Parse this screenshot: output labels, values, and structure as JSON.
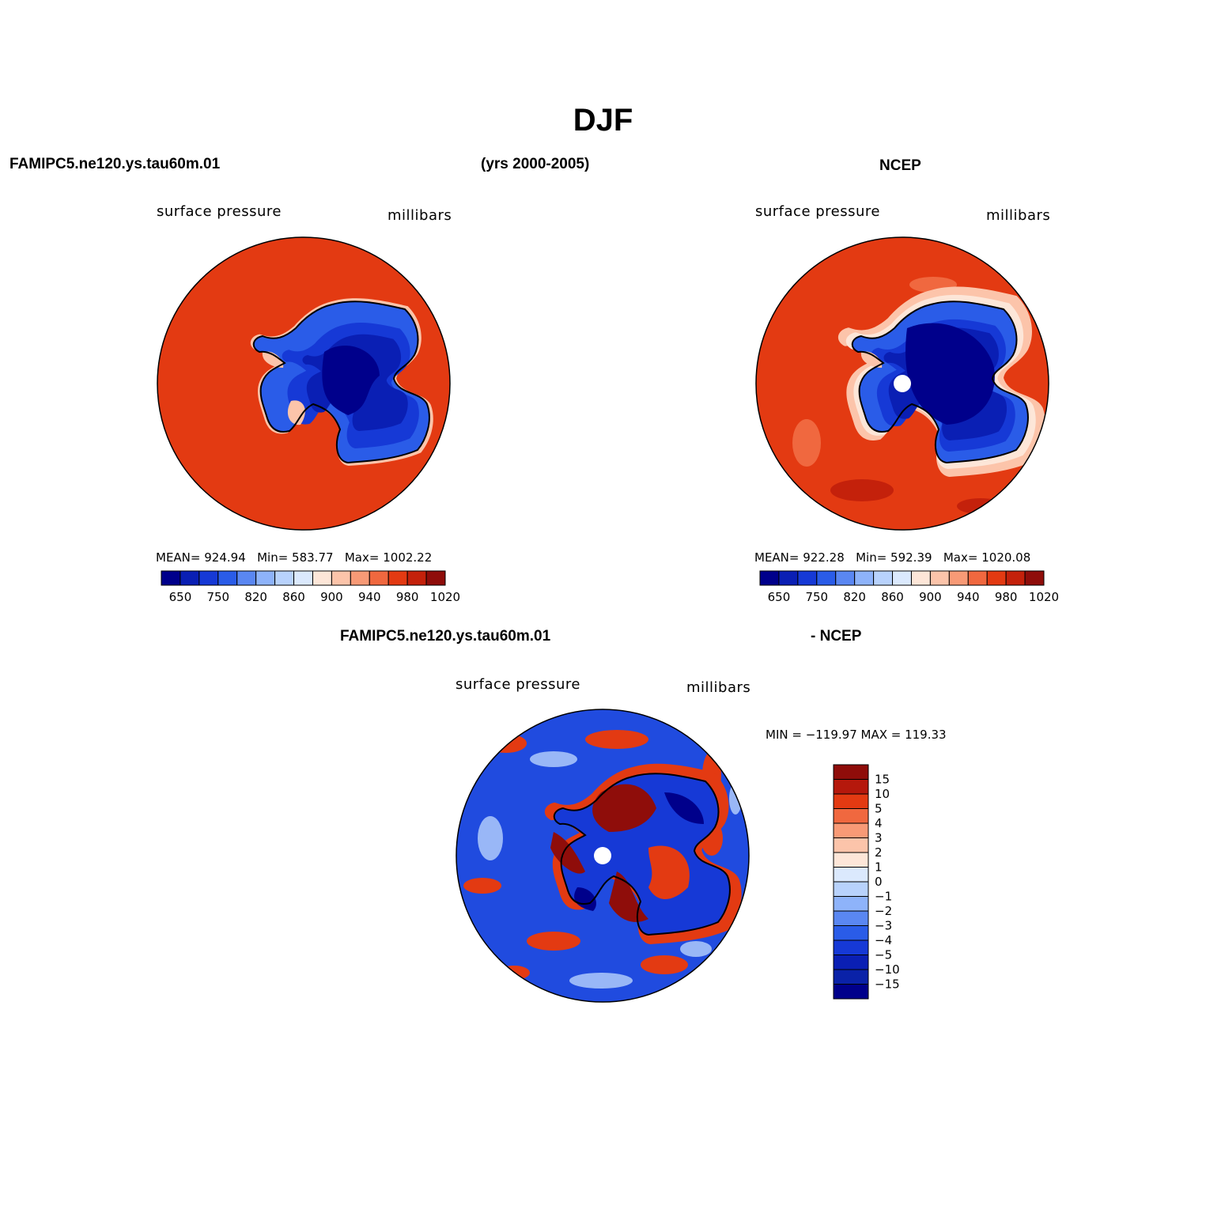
{
  "title": "DJF",
  "top_left": {
    "case_label": "FAMIPC5.ne120.ys.tau60m.01",
    "years_label": "(yrs 2000-2005)",
    "variable": "surface pressure",
    "units": "millibars",
    "stats": {
      "mean_label": "MEAN=",
      "mean": "924.94",
      "min_label": "Min=",
      "min": "583.77",
      "max_label": "Max=",
      "max": "1002.22"
    }
  },
  "top_right": {
    "case_label": "NCEP",
    "variable": "surface pressure",
    "units": "millibars",
    "stats": {
      "mean_label": "MEAN=",
      "mean": "922.28",
      "min_label": "Min=",
      "min": "592.39",
      "max_label": "Max=",
      "max": "1020.08"
    }
  },
  "bottom": {
    "case_label": "FAMIPC5.ne120.ys.tau60m.01",
    "diff_label": "- NCEP",
    "variable": "surface pressure",
    "units": "millibars",
    "minmax": "MIN = −119.97  MAX = 119.33"
  },
  "colorbar_top": {
    "colors": [
      "#00008b",
      "#0a1fb4",
      "#1639d6",
      "#2a5ce8",
      "#5a87f2",
      "#8eb3fa",
      "#b8d2fc",
      "#dbe9fd",
      "#fde6d8",
      "#fcc4aa",
      "#f89a76",
      "#f0683f",
      "#e33a12",
      "#c4210b",
      "#8f0d0a"
    ],
    "tick_labels": [
      "650",
      "750",
      "820",
      "860",
      "900",
      "940",
      "980",
      "1020"
    ]
  },
  "colorbar_diff": {
    "colors": [
      "#8f0d0a",
      "#b5180c",
      "#e33a12",
      "#f0683f",
      "#f89a76",
      "#fcc4aa",
      "#fde6d8",
      "#dbe9fd",
      "#b8d2fc",
      "#8eb3fa",
      "#5a87f2",
      "#2a5ce8",
      "#1639d6",
      "#0a1fb4",
      "#0a22a8",
      "#00008b"
    ],
    "tick_labels": [
      "15",
      "10",
      "5",
      "4",
      "3",
      "2",
      "1",
      "0",
      "−1",
      "−2",
      "−3",
      "−4",
      "−5",
      "−10",
      "−15"
    ]
  }
}
